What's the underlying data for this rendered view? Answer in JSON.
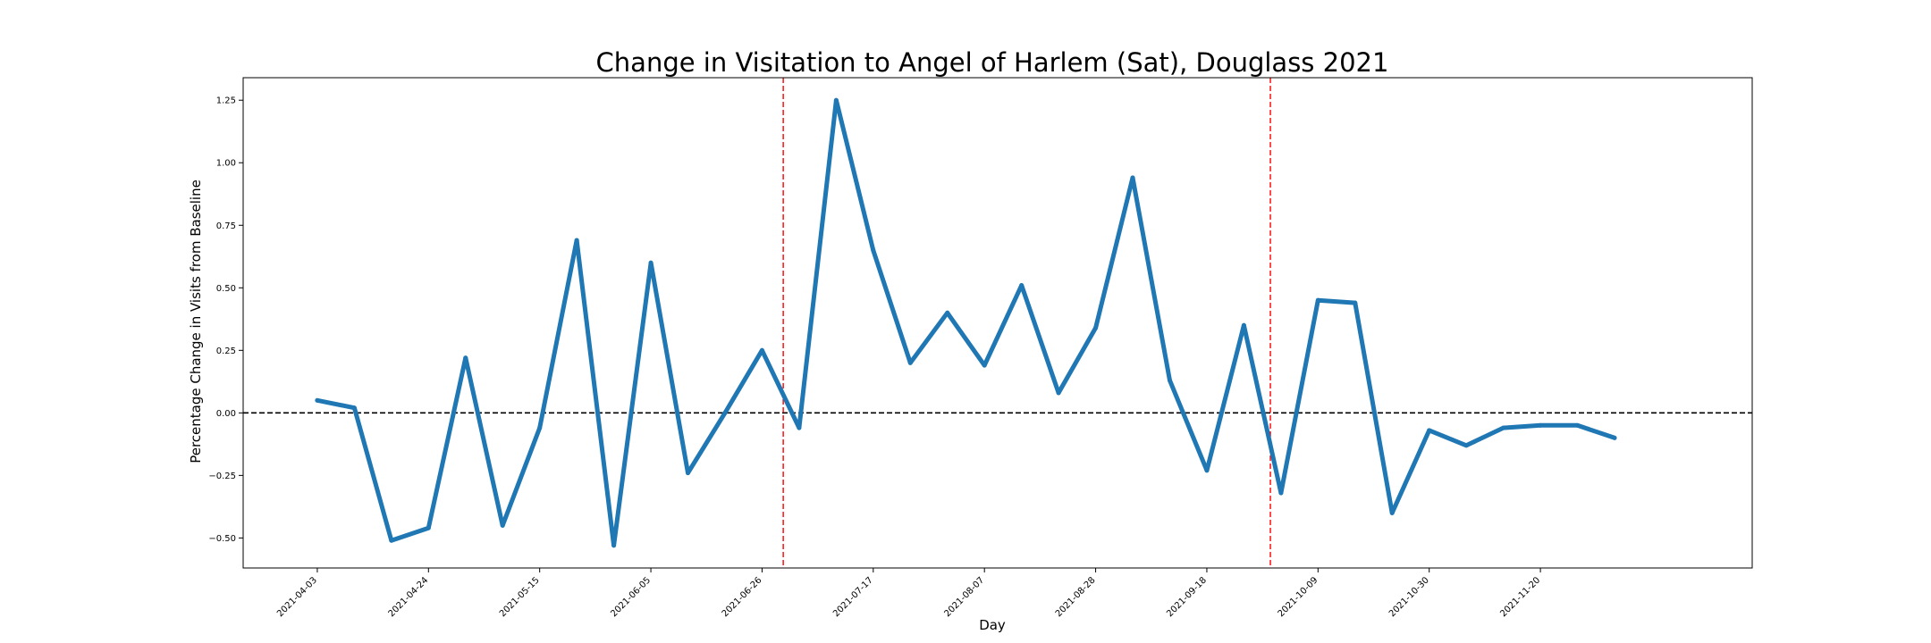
{
  "chart_data": {
    "type": "line",
    "title": "Change in Visitation to Angel of Harlem (Sat), Douglass 2021",
    "xlabel": "Day",
    "ylabel": "Percentage Change in Visits from Baseline",
    "xlim": [
      "2021-03-20",
      "2021-12-30"
    ],
    "ylim": [
      -0.62,
      1.34
    ],
    "x_ticks": [
      "2021-04-03",
      "2021-04-24",
      "2021-05-15",
      "2021-06-05",
      "2021-06-26",
      "2021-07-17",
      "2021-08-07",
      "2021-08-28",
      "2021-09-18",
      "2021-10-09",
      "2021-10-30",
      "2021-11-20"
    ],
    "y_ticks": [
      -0.5,
      -0.25,
      0.0,
      0.25,
      0.5,
      0.75,
      1.0,
      1.25
    ],
    "y_tick_labels": [
      "−0.50",
      "−0.25",
      "0.00",
      "0.25",
      "0.50",
      "0.75",
      "1.00",
      "1.25"
    ],
    "grid": false,
    "series": [
      {
        "color": "#1f77b4",
        "x": [
          "2021-04-03",
          "2021-04-10",
          "2021-04-17",
          "2021-04-24",
          "2021-05-01",
          "2021-05-08",
          "2021-05-15",
          "2021-05-22",
          "2021-05-29",
          "2021-06-05",
          "2021-06-12",
          "2021-06-19",
          "2021-06-26",
          "2021-07-03",
          "2021-07-10",
          "2021-07-17",
          "2021-07-24",
          "2021-07-31",
          "2021-08-07",
          "2021-08-14",
          "2021-08-21",
          "2021-08-28",
          "2021-09-04",
          "2021-09-11",
          "2021-09-18",
          "2021-09-25",
          "2021-10-02",
          "2021-10-09",
          "2021-10-16",
          "2021-10-23",
          "2021-10-30",
          "2021-11-06",
          "2021-11-13",
          "2021-11-20",
          "2021-11-27",
          "2021-12-04"
        ],
        "values": [
          0.05,
          0.02,
          -0.51,
          -0.46,
          0.22,
          -0.45,
          -0.06,
          0.69,
          -0.53,
          0.6,
          -0.24,
          0.0,
          0.25,
          -0.06,
          1.25,
          0.65,
          0.2,
          0.4,
          0.19,
          0.51,
          0.08,
          0.34,
          0.94,
          0.13,
          -0.23,
          0.35,
          -0.32,
          0.45,
          0.44,
          -0.4,
          -0.07,
          -0.13,
          -0.06,
          -0.05,
          -0.05,
          -0.1
        ]
      }
    ],
    "reference_lines": {
      "horizontal": {
        "y": 0.0,
        "color": "#000000",
        "style": "dashed"
      },
      "vertical": [
        {
          "x": "2021-06-30",
          "color": "#ff0000",
          "style": "dashed"
        },
        {
          "x": "2021-09-30",
          "color": "#ff0000",
          "style": "dashed"
        }
      ]
    }
  }
}
